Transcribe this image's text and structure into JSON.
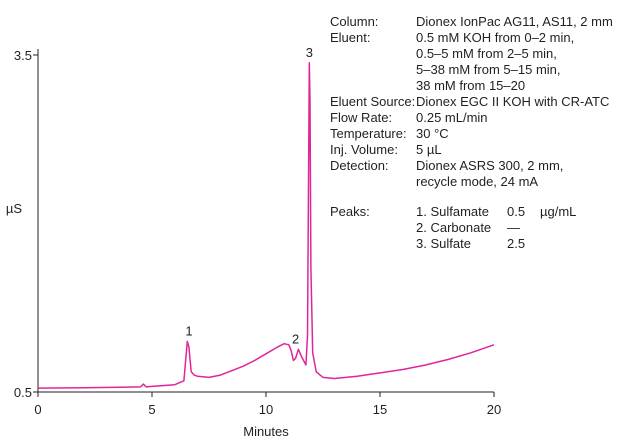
{
  "chart_data": {
    "type": "line",
    "xlabel": "Minutes",
    "ylabel": "µS",
    "xlim": [
      0,
      20
    ],
    "ylim": [
      0.5,
      3.5
    ],
    "x_ticks": [
      0,
      5,
      10,
      15,
      20
    ],
    "y_ticks": [
      0.5,
      3.5
    ],
    "grid": false,
    "series": [
      {
        "color": "#e0259b",
        "x": [
          0,
          2,
          4.5,
          4.62,
          4.75,
          5.0,
          6.0,
          6.4,
          6.55,
          6.62,
          6.72,
          6.85,
          7.0,
          7.5,
          8.0,
          8.5,
          9.0,
          9.5,
          10.0,
          10.5,
          10.8,
          11.0,
          11.1,
          11.2,
          11.3,
          11.42,
          11.55,
          11.75,
          11.82,
          11.86,
          11.9,
          11.93,
          11.97,
          12.05,
          12.2,
          12.5,
          13.0,
          14.0,
          15.0,
          16.0,
          17.0,
          18.0,
          19.0,
          20.0
        ],
        "y": [
          0.535,
          0.538,
          0.545,
          0.57,
          0.545,
          0.55,
          0.565,
          0.6,
          0.95,
          0.9,
          0.68,
          0.65,
          0.64,
          0.63,
          0.65,
          0.69,
          0.73,
          0.78,
          0.84,
          0.9,
          0.93,
          0.92,
          0.87,
          0.78,
          0.8,
          0.88,
          0.82,
          0.74,
          1.0,
          2.2,
          3.43,
          3.1,
          1.6,
          0.85,
          0.68,
          0.63,
          0.62,
          0.64,
          0.67,
          0.7,
          0.74,
          0.79,
          0.85,
          0.92
        ]
      }
    ],
    "peak_labels": [
      {
        "text": "1",
        "x": 6.62,
        "y": 0.95
      },
      {
        "text": "2",
        "x": 11.3,
        "y": 0.88
      },
      {
        "text": "3",
        "x": 11.9,
        "y": 3.43
      }
    ]
  },
  "conditions": [
    {
      "label": "Column:",
      "lines": [
        "Dionex IonPac AG11, AS11, 2 mm"
      ]
    },
    {
      "label": "Eluent:",
      "lines": [
        "0.5 mM KOH from 0–2 min,",
        "0.5–5 mM from 2–5 min,",
        "5–38 mM from 5–15 min,",
        "38 mM from 15–20"
      ]
    },
    {
      "label": "Eluent Source:",
      "lines": [
        "Dionex EGC II KOH with CR-ATC"
      ]
    },
    {
      "label": "Flow Rate:",
      "lines": [
        "0.25 mL/min"
      ]
    },
    {
      "label": "Temperature:",
      "lines": [
        "30 °C"
      ]
    },
    {
      "label": "Inj. Volume:",
      "lines": [
        "5 µL"
      ]
    },
    {
      "label": "Detection:",
      "lines": [
        "Dionex ASRS 300, 2 mm,",
        "recycle mode, 24 mA"
      ]
    }
  ],
  "peaks": {
    "label": "Peaks:",
    "unit": "µg/mL",
    "items": [
      {
        "name": "1. Sulfamate",
        "conc": "0.5"
      },
      {
        "name": "2. Carbonate",
        "conc": "—"
      },
      {
        "name": "3. Sulfate",
        "conc": "2.5"
      }
    ]
  }
}
